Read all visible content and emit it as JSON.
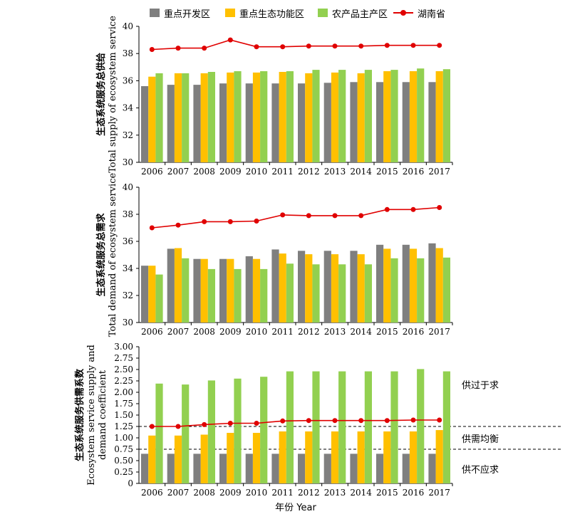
{
  "legend": {
    "series_names": [
      "重点开发区",
      "重点生态功能区",
      "农产品主产区",
      "湖南省"
    ]
  },
  "colors": {
    "series": [
      "#7f7f7f",
      "#ffc000",
      "#92d050",
      "#e00000"
    ]
  },
  "x_axis_title": "年份 Year",
  "chart_data": [
    {
      "type": "bar",
      "ylabel_zh": "生态系统服务总供给",
      "ylabel_en": "Total supply of ecosystem service",
      "categories": [
        "2006",
        "2007",
        "2008",
        "2009",
        "2010",
        "2011",
        "2012",
        "2013",
        "2014",
        "2015",
        "2016",
        "2017"
      ],
      "ylim": [
        30,
        40
      ],
      "yticks": [
        "30",
        "32",
        "34",
        "36",
        "38",
        "40"
      ],
      "series": [
        {
          "name": "重点开发区",
          "values": [
            35.6,
            35.7,
            35.7,
            35.8,
            35.8,
            35.8,
            35.8,
            35.85,
            35.9,
            35.9,
            35.9,
            35.9
          ]
        },
        {
          "name": "重点生态功能区",
          "values": [
            36.3,
            36.55,
            36.55,
            36.6,
            36.6,
            36.65,
            36.55,
            36.6,
            36.55,
            36.7,
            36.7,
            36.7
          ]
        },
        {
          "name": "农产品主产区",
          "values": [
            36.55,
            36.55,
            36.65,
            36.7,
            36.7,
            36.7,
            36.8,
            36.8,
            36.8,
            36.8,
            36.9,
            36.85
          ]
        },
        {
          "name": "湖南省",
          "values": [
            38.3,
            38.4,
            38.4,
            39.0,
            38.5,
            38.5,
            38.55,
            38.55,
            38.55,
            38.6,
            38.6,
            38.6
          ]
        }
      ]
    },
    {
      "type": "bar",
      "ylabel_zh": "生态系统服务总需求",
      "ylabel_en": "Total demand of ecosystem service",
      "categories": [
        "2006",
        "2007",
        "2008",
        "2009",
        "2010",
        "2011",
        "2012",
        "2013",
        "2014",
        "2015",
        "2016",
        "2017"
      ],
      "ylim": [
        30,
        40
      ],
      "yticks": [
        "30",
        "32",
        "34",
        "36",
        "38",
        "40"
      ],
      "series": [
        {
          "name": "重点开发区",
          "values": [
            34.2,
            35.45,
            34.7,
            34.7,
            34.9,
            35.4,
            35.3,
            35.3,
            35.3,
            35.75,
            35.75,
            35.85
          ]
        },
        {
          "name": "重点生态功能区",
          "values": [
            34.2,
            35.5,
            34.7,
            34.7,
            34.7,
            35.1,
            35.05,
            35.05,
            35.05,
            35.45,
            35.45,
            35.5
          ]
        },
        {
          "name": "农产品主产区",
          "values": [
            33.55,
            34.75,
            33.95,
            33.95,
            33.95,
            34.35,
            34.3,
            34.3,
            34.3,
            34.75,
            34.75,
            34.8
          ]
        },
        {
          "name": "湖南省",
          "values": [
            37.0,
            37.2,
            37.45,
            37.45,
            37.5,
            37.95,
            37.9,
            37.9,
            37.9,
            38.35,
            38.35,
            38.5
          ]
        }
      ]
    },
    {
      "type": "bar",
      "ylabel_zh": "生态系统服务供需系数",
      "ylabel_en_1": "Ecosystem service supply and",
      "ylabel_en_2": "demand coefficient",
      "categories": [
        "2006",
        "2007",
        "2008",
        "2009",
        "2010",
        "2011",
        "2012",
        "2013",
        "2014",
        "2015",
        "2016",
        "2017"
      ],
      "ylim": [
        0,
        3.0
      ],
      "yticks": [
        "0",
        "0.25",
        "0.50",
        "0.75",
        "1.00",
        "1.25",
        "1.50",
        "1.75",
        "2.00",
        "2.25",
        "2.50",
        "2.75",
        "3.00"
      ],
      "series": [
        {
          "name": "重点开发区",
          "values": [
            0.65,
            0.65,
            0.65,
            0.65,
            0.65,
            0.65,
            0.65,
            0.65,
            0.65,
            0.65,
            0.65,
            0.65
          ]
        },
        {
          "name": "重点生态功能区",
          "values": [
            1.05,
            1.05,
            1.07,
            1.11,
            1.11,
            1.14,
            1.14,
            1.14,
            1.14,
            1.14,
            1.14,
            1.17
          ]
        },
        {
          "name": "农产品主产区",
          "values": [
            2.19,
            2.17,
            2.26,
            2.3,
            2.34,
            2.46,
            2.46,
            2.46,
            2.46,
            2.46,
            2.51,
            2.46
          ]
        },
        {
          "name": "湖南省",
          "values": [
            1.25,
            1.25,
            1.29,
            1.32,
            1.32,
            1.37,
            1.38,
            1.38,
            1.38,
            1.38,
            1.39,
            1.39
          ]
        }
      ],
      "reference_lines": [
        1.25,
        0.75
      ],
      "zones": [
        "供过于求",
        "供需均衡",
        "供不应求"
      ]
    }
  ]
}
